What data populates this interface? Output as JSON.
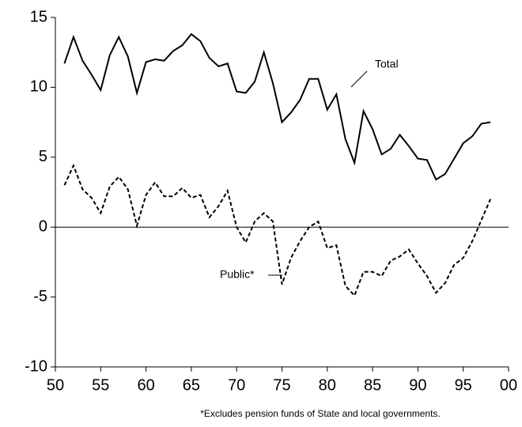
{
  "chart_data": {
    "type": "line",
    "note": "*Excludes pension funds of State and local governments.",
    "x": [
      51,
      52,
      53,
      54,
      55,
      56,
      57,
      58,
      59,
      60,
      61,
      62,
      63,
      64,
      65,
      66,
      67,
      68,
      69,
      70,
      71,
      72,
      73,
      74,
      75,
      76,
      77,
      78,
      79,
      80,
      81,
      82,
      83,
      84,
      85,
      86,
      87,
      88,
      89,
      90,
      91,
      92,
      93,
      94,
      95,
      96,
      97,
      98
    ],
    "series": [
      {
        "name": "Total",
        "color": "#000000",
        "dash": false,
        "values": [
          11.7,
          13.6,
          11.9,
          10.9,
          9.8,
          12.3,
          13.6,
          12.2,
          9.6,
          11.8,
          12.0,
          11.9,
          12.6,
          13.0,
          13.8,
          13.3,
          12.1,
          11.5,
          11.7,
          9.7,
          9.6,
          10.4,
          12.5,
          10.3,
          7.5,
          8.2,
          9.1,
          10.6,
          10.6,
          8.4,
          9.5,
          6.3,
          4.6,
          8.3,
          7.0,
          5.2,
          5.6,
          6.6,
          5.8,
          4.9,
          4.8,
          3.4,
          3.8,
          4.9,
          6.0,
          6.5,
          7.4,
          7.5
        ]
      },
      {
        "name": "Public*",
        "color": "#000000",
        "dash": true,
        "values": [
          3.0,
          4.4,
          2.7,
          2.1,
          1.0,
          2.9,
          3.6,
          2.7,
          0.1,
          2.3,
          3.2,
          2.2,
          2.2,
          2.8,
          2.1,
          2.3,
          0.7,
          1.5,
          2.6,
          0.0,
          -1.1,
          0.4,
          1.0,
          0.4,
          -4.1,
          -2.2,
          -1.0,
          0.0,
          0.4,
          -1.5,
          -1.3,
          -4.2,
          -4.9,
          -3.2,
          -3.2,
          -3.5,
          -2.4,
          -2.1,
          -1.6,
          -2.6,
          -3.5,
          -4.7,
          -4.0,
          -2.7,
          -2.2,
          -1.0,
          0.5,
          2.0
        ]
      }
    ],
    "xlim": [
      50,
      100
    ],
    "xticks": [
      50,
      55,
      60,
      65,
      70,
      75,
      80,
      85,
      90,
      95,
      {
        "value": 100,
        "label": "00"
      }
    ],
    "ylim": [
      -10,
      15
    ],
    "yticks": [
      -10,
      -5,
      0,
      5,
      10,
      15
    ],
    "zero_line": true,
    "grid": false
  }
}
